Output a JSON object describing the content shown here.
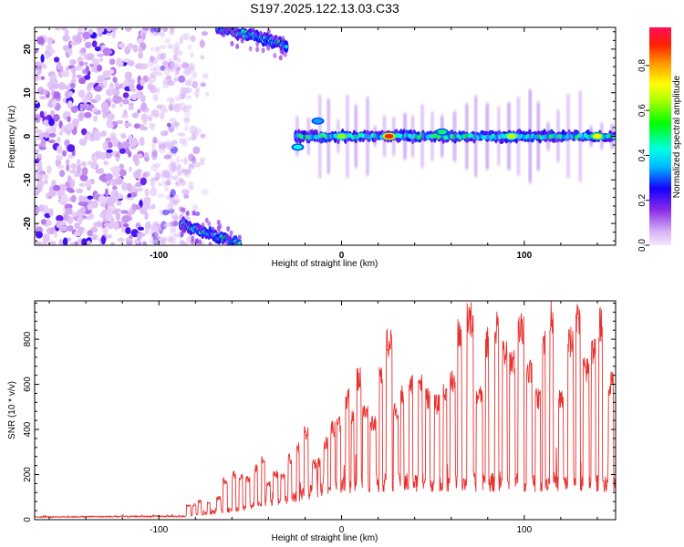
{
  "title": "S197.2025.122.13.03.C33",
  "chart_data": [
    {
      "type": "heatmap",
      "xlabel": "Height of straight line (km)",
      "ylabel": "Frequency (Hz)",
      "xlim": [
        -168,
        150
      ],
      "ylim": [
        -25,
        25
      ],
      "x_ticks": [
        -100,
        0,
        100
      ],
      "y_ticks": [
        -20,
        -10,
        0,
        10,
        20
      ],
      "colorbar": {
        "label": "Normalized spectral amplitude",
        "range": [
          0.0,
          0.97
        ],
        "ticks": [
          "0.0",
          "0.2",
          "0.4",
          "0.6",
          "0.8"
        ],
        "tick_values": [
          0.0,
          0.2,
          0.4,
          0.6,
          0.8
        ]
      },
      "features": [
        {
          "name": "diffuse noise region",
          "x_range": [
            -168,
            -85
          ],
          "freq_range": [
            -25,
            25
          ],
          "amplitude": 0.1
        },
        {
          "name": "aliased high-frequency track",
          "x_range": [
            -88,
            -55
          ],
          "freq_start": -20,
          "freq_end": -25,
          "amplitude": 0.3
        },
        {
          "name": "aliased high-frequency track",
          "x_range": [
            -68,
            -30
          ],
          "freq_start": 25,
          "freq_end": 21,
          "amplitude": 0.3
        },
        {
          "name": "steady signal band",
          "x_range": [
            -25,
            150
          ],
          "freq": 0,
          "amplitude": 0.5
        }
      ],
      "hot_spots": [
        {
          "x": -24,
          "freq": -2.5,
          "amplitude": 0.45
        },
        {
          "x": -13,
          "freq": 3.5,
          "amplitude": 0.35
        },
        {
          "x": 0,
          "freq": 0,
          "amplitude": 0.65
        },
        {
          "x": 26,
          "freq": 0,
          "amplitude": 0.92
        },
        {
          "x": 55,
          "freq": 1,
          "amplitude": 0.5
        },
        {
          "x": 93,
          "freq": 0,
          "amplitude": 0.7
        },
        {
          "x": 140,
          "freq": 0,
          "amplitude": 0.75
        }
      ]
    },
    {
      "type": "line",
      "xlabel": "Height of straight line (km)",
      "ylabel": "SNR (10 * v/v)",
      "xlim": [
        -168,
        150
      ],
      "ylim": [
        0,
        970
      ],
      "x_ticks": [
        -100,
        0,
        100
      ],
      "y_ticks": [
        0,
        200,
        400,
        600,
        800
      ],
      "color": "#e8302e",
      "series_profile": {
        "x_breakpoints": [
          -168,
          -85,
          -60,
          -30,
          -10,
          10,
          30,
          60,
          100,
          150
        ],
        "baseline_values": [
          12,
          15,
          45,
          90,
          140,
          160,
          165,
          165,
          165,
          165
        ],
        "peak_values": [
          40,
          60,
          200,
          290,
          450,
          680,
          800,
          850,
          880,
          850
        ]
      }
    }
  ]
}
